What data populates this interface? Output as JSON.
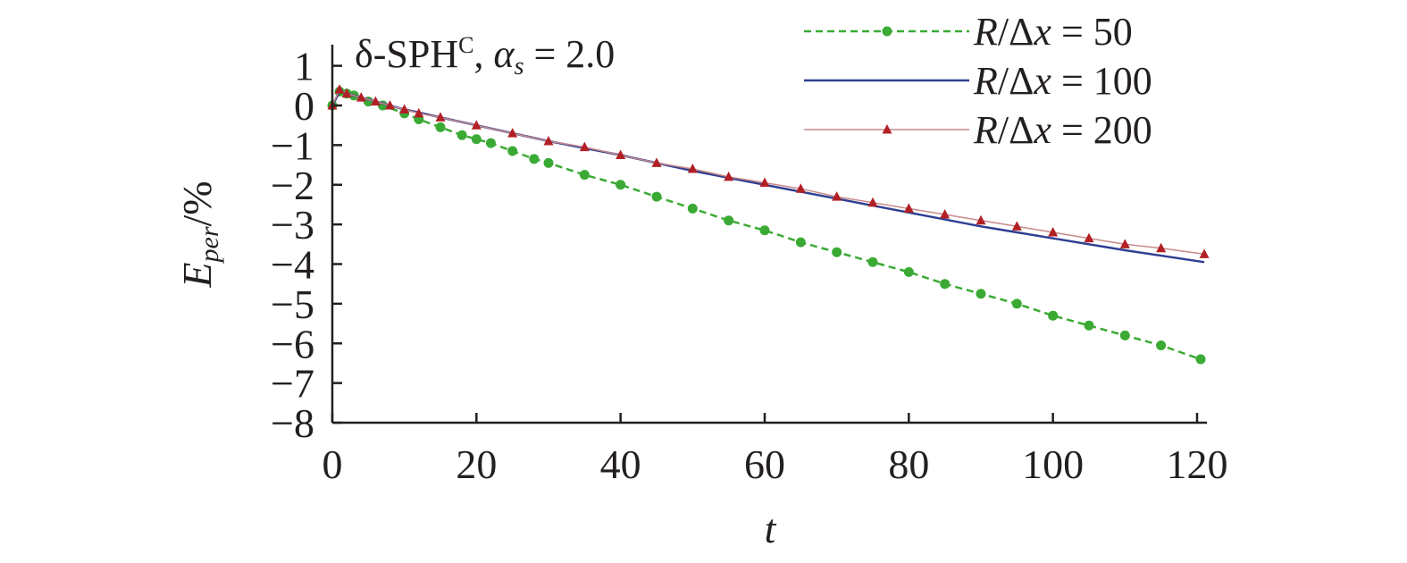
{
  "chart_data": {
    "type": "line",
    "title": "",
    "annotation": {
      "prefix": "δ-SPH",
      "sup": "C",
      "sep": ", ",
      "alpha": "α",
      "alpha_sub": "s",
      "eq": " = 2.0"
    },
    "xlabel": "t",
    "ylabel": {
      "main": "E",
      "sub": "per",
      "rest": "/%"
    },
    "xlim": [
      0,
      121
    ],
    "ylim": [
      -8,
      1.2
    ],
    "x_ticks": [
      0,
      20,
      40,
      60,
      80,
      100,
      120
    ],
    "x_tick_labels": [
      "0",
      "20",
      "40",
      "60",
      "80",
      "100",
      "120"
    ],
    "y_ticks": [
      1,
      0,
      -1,
      -2,
      -3,
      -4,
      -5,
      -6,
      -7,
      -8
    ],
    "y_tick_labels": [
      "1",
      "0",
      "−1",
      "−2",
      "−3",
      "−4",
      "−5",
      "−6",
      "−7",
      "−8"
    ],
    "grid": false,
    "legend_position": "top-right",
    "series": [
      {
        "name": "R/Δx = 50",
        "legend": {
          "r": "R",
          "slash": "/",
          "delta": "Δ",
          "x": "x",
          "eq": " = 50"
        },
        "color": "#3aaa35",
        "style": "dashed",
        "marker": "circle",
        "x": [
          0,
          1,
          2,
          3,
          5,
          7,
          10,
          12,
          15,
          18,
          20,
          22,
          25,
          28,
          30,
          35,
          40,
          45,
          50,
          55,
          60,
          65,
          70,
          75,
          80,
          85,
          90,
          95,
          100,
          105,
          110,
          115,
          120.5
        ],
        "y": [
          0,
          0.35,
          0.3,
          0.25,
          0.1,
          0,
          -0.2,
          -0.35,
          -0.55,
          -0.75,
          -0.85,
          -0.95,
          -1.15,
          -1.35,
          -1.45,
          -1.75,
          -2.0,
          -2.3,
          -2.6,
          -2.9,
          -3.15,
          -3.45,
          -3.7,
          -3.95,
          -4.2,
          -4.5,
          -4.75,
          -5.0,
          -5.3,
          -5.55,
          -5.8,
          -6.05,
          -6.4
        ]
      },
      {
        "name": "R/Δx = 100",
        "legend": {
          "r": "R",
          "slash": "/",
          "delta": "Δ",
          "x": "x",
          "eq": " = 100"
        },
        "color": "#2f3f92",
        "style": "solid",
        "marker": "none",
        "x": [
          0,
          1,
          2,
          4,
          6,
          8,
          10,
          15,
          20,
          30,
          40,
          50,
          60,
          70,
          80,
          90,
          100,
          110,
          121
        ],
        "y": [
          0,
          0.35,
          0.3,
          0.2,
          0.1,
          0.0,
          -0.1,
          -0.3,
          -0.5,
          -0.9,
          -1.25,
          -1.65,
          -2.0,
          -2.35,
          -2.7,
          -3.05,
          -3.35,
          -3.65,
          -3.95
        ]
      },
      {
        "name": "R/Δx = 200",
        "legend": {
          "r": "R",
          "slash": "/",
          "delta": "Δ",
          "x": "x",
          "eq": " = 200"
        },
        "color": "#b22025",
        "line_color": "#c98a8a",
        "style": "solid",
        "marker": "triangle",
        "x": [
          0,
          1,
          2,
          4,
          6,
          8,
          10,
          12,
          15,
          20,
          25,
          30,
          35,
          40,
          45,
          50,
          55,
          60,
          65,
          70,
          75,
          80,
          85,
          90,
          95,
          100,
          105,
          110,
          115,
          121
        ],
        "y": [
          0,
          0.4,
          0.3,
          0.2,
          0.1,
          0.0,
          -0.1,
          -0.2,
          -0.3,
          -0.5,
          -0.7,
          -0.9,
          -1.05,
          -1.25,
          -1.45,
          -1.6,
          -1.8,
          -1.95,
          -2.1,
          -2.3,
          -2.45,
          -2.6,
          -2.75,
          -2.9,
          -3.05,
          -3.2,
          -3.35,
          -3.5,
          -3.6,
          -3.75
        ]
      }
    ]
  }
}
